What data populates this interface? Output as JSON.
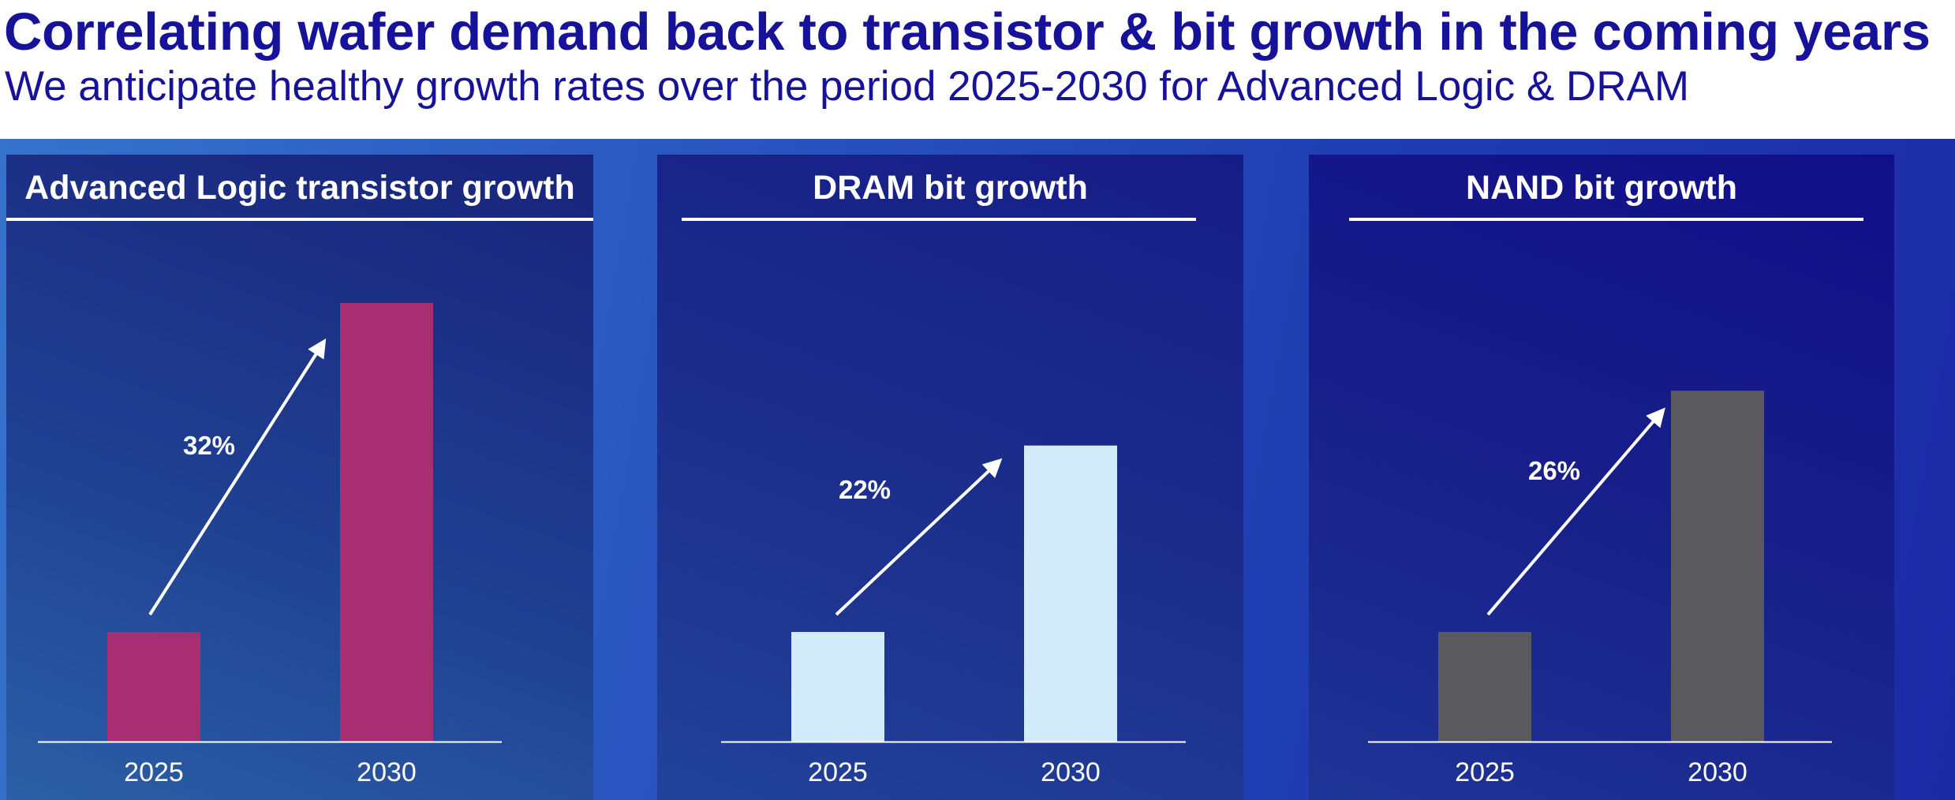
{
  "header": {
    "title": "Correlating wafer demand back to transistor & bit growth in the coming years",
    "subtitle": "We anticipate healthy growth rates over the period 2025-2030 for Advanced Logic & DRAM"
  },
  "colors": {
    "logic_bar": "#a82e74",
    "dram_bar": "#d2ecfb",
    "nand_bar": "#5a5a5e",
    "text": "#ffffff",
    "title": "#16129a"
  },
  "chart_data": [
    {
      "type": "bar",
      "title": "Advanced Logic transistor growth",
      "categories": [
        "2025",
        "2030"
      ],
      "values": [
        1.0,
        4.0
      ],
      "annotation": "32%",
      "xlabel": "",
      "ylabel": "",
      "grid": false,
      "bar_color": "#a82e74"
    },
    {
      "type": "bar",
      "title": "DRAM bit growth",
      "categories": [
        "2025",
        "2030"
      ],
      "values": [
        1.0,
        2.7
      ],
      "annotation": "22%",
      "xlabel": "",
      "ylabel": "",
      "grid": false,
      "bar_color": "#d2ecfb"
    },
    {
      "type": "bar",
      "title": "NAND bit growth",
      "categories": [
        "2025",
        "2030"
      ],
      "values": [
        1.0,
        3.2
      ],
      "annotation": "26%",
      "xlabel": "",
      "ylabel": "",
      "grid": false,
      "bar_color": "#5a5a5e"
    }
  ]
}
